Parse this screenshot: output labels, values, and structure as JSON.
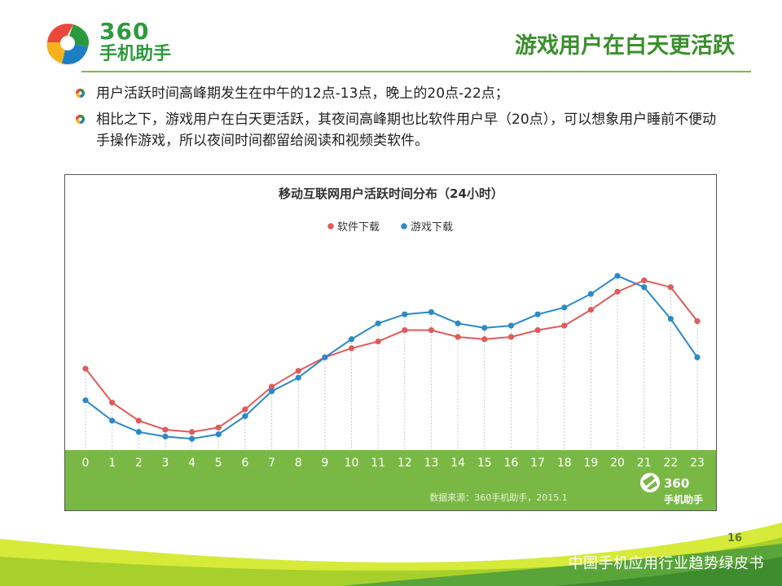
{
  "header": {
    "logo_number": "360",
    "logo_name": "手机助手",
    "title": "游戏用户在白天更活跃"
  },
  "bullets": [
    "用户活跃时间高峰期发生在中午的12点-13点，晚上的20点-22点；",
    "相比之下，游戏用户在白天更活跃，其夜间高峰期也比软件用户早（20点），可以想象用户睡前不便动手操作游戏，所以夜间时间都留给阅读和视频类软件。"
  ],
  "chart_data": {
    "type": "line",
    "title": "移动互联网用户活跃时间分布（24小时）",
    "xlabel": "",
    "ylabel": "",
    "x": [
      0,
      1,
      2,
      3,
      4,
      5,
      6,
      7,
      8,
      9,
      10,
      11,
      12,
      13,
      14,
      15,
      16,
      17,
      18,
      19,
      20,
      21,
      22,
      23
    ],
    "ylim": [
      0,
      100
    ],
    "y_axis_visible": false,
    "vertical_gridlines": true,
    "legend_position": "top-center",
    "series": [
      {
        "name": "软件下载",
        "color": "#e05a5a",
        "values": [
          36,
          21,
          13,
          9,
          8,
          10,
          18,
          28,
          35,
          41,
          45,
          48,
          53,
          53,
          50,
          49,
          50,
          53,
          55,
          62,
          70,
          75,
          72,
          57
        ]
      },
      {
        "name": "游戏下载",
        "color": "#2a8ac6",
        "values": [
          22,
          13,
          8,
          6,
          5,
          7,
          15,
          26,
          32,
          41,
          49,
          56,
          60,
          61,
          56,
          54,
          55,
          60,
          63,
          69,
          77,
          72,
          58,
          41
        ]
      }
    ],
    "source_note": "数据来源：360手机助手，2015.1",
    "band_logo_number": "360",
    "band_logo_name": "手机助手",
    "band_color": "#7ab845"
  },
  "footer": {
    "page_number": "16",
    "report_title": "中国手机应用行业趋势绿皮书"
  }
}
